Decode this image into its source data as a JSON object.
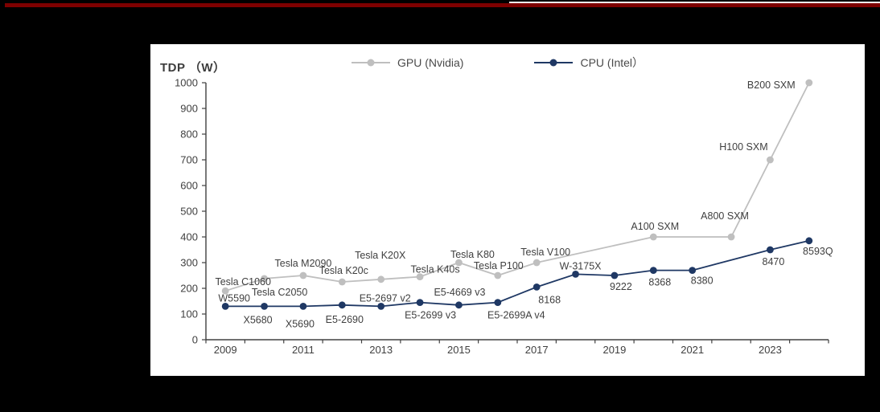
{
  "page": {
    "colors": {
      "background": "#000000",
      "top_bar_red": "#7e0000",
      "top_line_white": "#ffffff",
      "panel_background": "#ffffff",
      "axis": "#404040",
      "tick_label": "#404040",
      "data_label": "#3f3f3f",
      "gpu_series": "#bfbfbf",
      "cpu_series": "#1f3864"
    }
  },
  "chart": {
    "title": "TDP （W）"
  },
  "chart_data": {
    "type": "line",
    "title": "TDP （W）",
    "xlabel": "",
    "ylabel": "TDP (W)",
    "ylim": [
      0,
      1000
    ],
    "yticks": [
      0,
      100,
      200,
      300,
      400,
      500,
      600,
      700,
      800,
      900,
      1000
    ],
    "ytick_step": 100,
    "x_range": [
      2009,
      2024
    ],
    "xticks_labeled": [
      2009,
      2011,
      2013,
      2015,
      2017,
      2019,
      2021,
      2023
    ],
    "grid": false,
    "legend_position": "top",
    "series": [
      {
        "name": "GPU (Nvidia)",
        "color": "#bfbfbf",
        "points": [
          {
            "year": 2009,
            "tdp": 190,
            "label": "Tesla C1060",
            "dx": 22,
            "dy": -7
          },
          {
            "year": 2010,
            "tdp": 238,
            "label": "Tesla C2050",
            "dx": 19,
            "dy": 21
          },
          {
            "year": 2011,
            "tdp": 250,
            "label": "Tesla M2090",
            "dx": 0,
            "dy": -11
          },
          {
            "year": 2012,
            "tdp": 225,
            "label": "Tesla K20c",
            "dx": 2,
            "dy": -10
          },
          {
            "year": 2013,
            "tdp": 235,
            "label": "Tesla K20X",
            "dx": -1,
            "dy": -26
          },
          {
            "year": 2014,
            "tdp": 245,
            "label": "Tesla K40s",
            "dx": 19,
            "dy": -5
          },
          {
            "year": 2015,
            "tdp": 300,
            "label": "Tesla K80",
            "dx": 17,
            "dy": -6
          },
          {
            "year": 2016,
            "tdp": 250,
            "label": "Tesla P100",
            "dx": 1,
            "dy": -8
          },
          {
            "year": 2017,
            "tdp": 300,
            "label": "Tesla V100",
            "dx": 11,
            "dy": -9
          },
          {
            "year": 2020,
            "tdp": 400,
            "label": "A100 SXM",
            "dx": 2,
            "dy": -9
          },
          {
            "year": 2022,
            "tdp": 400,
            "label": "A800 SXM",
            "dx": -8,
            "dy": -22
          },
          {
            "year": 2023,
            "tdp": 700,
            "label": "H100 SXM",
            "dx": -33,
            "dy": -12
          },
          {
            "year": 2024,
            "tdp": 1000,
            "label": "B200 SXM",
            "dx": -47,
            "dy": 7
          }
        ]
      },
      {
        "name": "CPU (Intel）",
        "color": "#1f3864",
        "points": [
          {
            "year": 2009,
            "tdp": 130,
            "label": "W5590",
            "dx": 11,
            "dy": -6
          },
          {
            "year": 2010,
            "tdp": 130,
            "label": "X5680",
            "dx": -8,
            "dy": 21
          },
          {
            "year": 2011,
            "tdp": 130,
            "label": "X5690",
            "dx": -4,
            "dy": 26
          },
          {
            "year": 2012,
            "tdp": 135,
            "label": "E5-2690",
            "dx": 3,
            "dy": 22
          },
          {
            "year": 2013,
            "tdp": 130,
            "label": "E5-2697 v2",
            "dx": 5,
            "dy": -6
          },
          {
            "year": 2014,
            "tdp": 145,
            "label": "E5-2699 v3",
            "dx": 13,
            "dy": 20
          },
          {
            "year": 2015,
            "tdp": 135,
            "label": "E5-4669 v3",
            "dx": 1,
            "dy": -12
          },
          {
            "year": 2016,
            "tdp": 145,
            "label": "E5-2699A v4",
            "dx": 23,
            "dy": 20
          },
          {
            "year": 2017,
            "tdp": 205,
            "label": "8168",
            "dx": 16,
            "dy": 20
          },
          {
            "year": 2018,
            "tdp": 255,
            "label": "W-3175X",
            "dx": 6,
            "dy": -6
          },
          {
            "year": 2019,
            "tdp": 250,
            "label": "9222",
            "dx": 8,
            "dy": 18
          },
          {
            "year": 2020,
            "tdp": 270,
            "label": "8368",
            "dx": 8,
            "dy": 19
          },
          {
            "year": 2021,
            "tdp": 270,
            "label": "8380",
            "dx": 12,
            "dy": 17
          },
          {
            "year": 2023,
            "tdp": 350,
            "label": "8470",
            "dx": 4,
            "dy": 19
          },
          {
            "year": 2024,
            "tdp": 385,
            "label": "8593Q",
            "dx": 11,
            "dy": 17
          }
        ]
      }
    ]
  }
}
